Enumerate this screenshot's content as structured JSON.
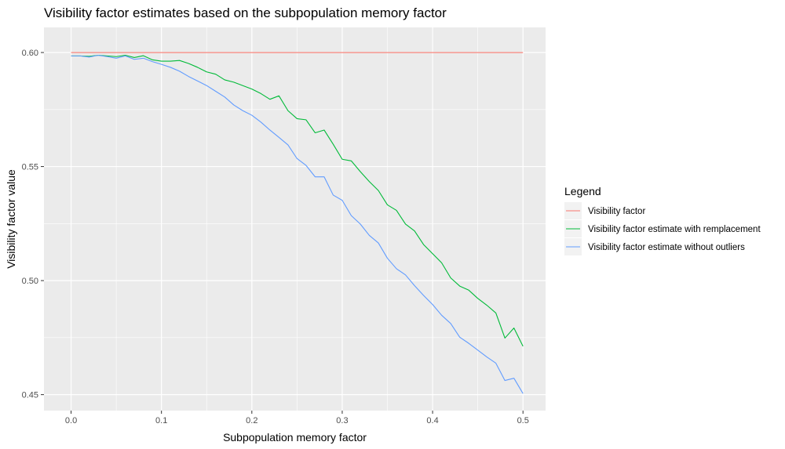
{
  "chart_data": {
    "type": "line",
    "title": "Visibility factor estimates based on the subpopulation memory factor",
    "xlabel": "Subpopulation memory factor",
    "ylabel": "Visibility factor value",
    "xlim": [
      -0.03,
      0.525
    ],
    "ylim": [
      0.443,
      0.611
    ],
    "x_ticks": [
      0.0,
      0.1,
      0.2,
      0.3,
      0.4,
      0.5
    ],
    "x_tick_labels": [
      "0.0",
      "0.1",
      "0.2",
      "0.3",
      "0.4",
      "0.5"
    ],
    "y_ticks": [
      0.45,
      0.5,
      0.55,
      0.6
    ],
    "y_tick_labels": [
      "0.45",
      "0.50",
      "0.55",
      "0.60"
    ],
    "grid": true,
    "legend_title": "Legend",
    "legend_position": "right",
    "series": [
      {
        "name": "Visibility factor",
        "color": "#F8766D",
        "x": [
          0.0,
          0.5
        ],
        "y": [
          0.6,
          0.6
        ]
      },
      {
        "name": "Visibility factor estimate with remplacement",
        "color": "#00BA38",
        "x": [
          0.0,
          0.01,
          0.02,
          0.03,
          0.04,
          0.05,
          0.06,
          0.07,
          0.08,
          0.09,
          0.1,
          0.11,
          0.12,
          0.13,
          0.14,
          0.15,
          0.16,
          0.17,
          0.18,
          0.19,
          0.2,
          0.21,
          0.22,
          0.23,
          0.24,
          0.25,
          0.26,
          0.27,
          0.28,
          0.29,
          0.3,
          0.31,
          0.32,
          0.33,
          0.34,
          0.35,
          0.36,
          0.37,
          0.38,
          0.39,
          0.4,
          0.41,
          0.42,
          0.43,
          0.44,
          0.45,
          0.46,
          0.47,
          0.48,
          0.49,
          0.5
        ],
        "y": [
          0.5985,
          0.5985,
          0.5983,
          0.5988,
          0.5985,
          0.5982,
          0.5988,
          0.5978,
          0.5986,
          0.5968,
          0.5962,
          0.5962,
          0.5965,
          0.5952,
          0.5935,
          0.5915,
          0.5905,
          0.588,
          0.587,
          0.5855,
          0.584,
          0.582,
          0.5795,
          0.581,
          0.5745,
          0.571,
          0.5705,
          0.5648,
          0.566,
          0.5598,
          0.5532,
          0.5525,
          0.5478,
          0.5434,
          0.5395,
          0.5332,
          0.5308,
          0.5248,
          0.5218,
          0.5158,
          0.5118,
          0.5078,
          0.5012,
          0.4976,
          0.4958,
          0.4922,
          0.4892,
          0.4858,
          0.4748,
          0.4792,
          0.4712
        ]
      },
      {
        "name": "Visibility factor estimate without outliers",
        "color": "#619CFF",
        "x": [
          0.0,
          0.01,
          0.02,
          0.03,
          0.04,
          0.05,
          0.06,
          0.07,
          0.08,
          0.09,
          0.1,
          0.11,
          0.12,
          0.13,
          0.14,
          0.15,
          0.16,
          0.17,
          0.18,
          0.19,
          0.2,
          0.21,
          0.22,
          0.23,
          0.24,
          0.25,
          0.26,
          0.27,
          0.28,
          0.29,
          0.3,
          0.31,
          0.32,
          0.33,
          0.34,
          0.35,
          0.36,
          0.37,
          0.38,
          0.39,
          0.4,
          0.41,
          0.42,
          0.43,
          0.44,
          0.45,
          0.46,
          0.47,
          0.48,
          0.49,
          0.5
        ],
        "y": [
          0.5985,
          0.5985,
          0.598,
          0.5988,
          0.5982,
          0.5975,
          0.5985,
          0.597,
          0.5975,
          0.596,
          0.5948,
          0.5935,
          0.5918,
          0.5895,
          0.5875,
          0.5855,
          0.583,
          0.5805,
          0.577,
          0.5745,
          0.5725,
          0.5695,
          0.566,
          0.5628,
          0.5595,
          0.5535,
          0.5505,
          0.5455,
          0.5455,
          0.5375,
          0.5352,
          0.5285,
          0.5248,
          0.5198,
          0.5165,
          0.5098,
          0.5052,
          0.5025,
          0.4978,
          0.4935,
          0.4895,
          0.4848,
          0.4812,
          0.4752,
          0.4725,
          0.4695,
          0.4665,
          0.4638,
          0.4562,
          0.4572,
          0.4505
        ]
      }
    ]
  }
}
